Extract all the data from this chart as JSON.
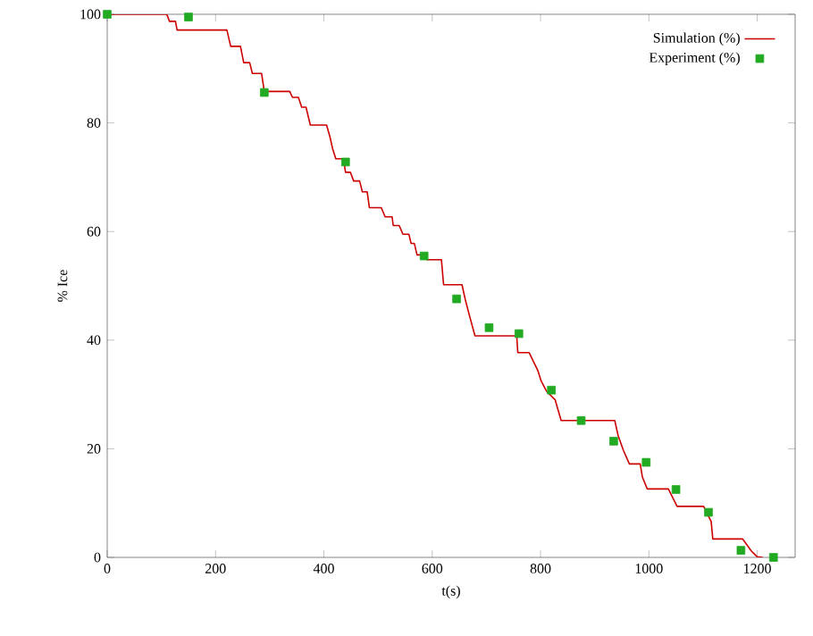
{
  "chart_data": {
    "type": "line",
    "xlabel": "t(s)",
    "ylabel": "% Ice",
    "xlim": [
      0,
      1270
    ],
    "ylim": [
      0,
      100
    ],
    "xticks": [
      0,
      200,
      400,
      600,
      800,
      1000,
      1200
    ],
    "yticks": [
      0,
      20,
      40,
      60,
      80,
      100
    ],
    "legend": "top right",
    "grid": false,
    "series": [
      {
        "name": "Simulation (%)",
        "color": "#cc0000",
        "marker": "none",
        "line_style": "solid",
        "x": [
          0,
          110,
          115,
          126,
          129,
          221,
          228,
          246,
          252,
          263,
          268,
          285,
          290,
          337,
          342,
          353,
          359,
          367,
          375,
          405,
          411,
          416,
          422,
          436,
          440,
          449,
          455,
          466,
          471,
          480,
          484,
          506,
          513,
          526,
          528,
          539,
          546,
          557,
          561,
          567,
          572,
          586,
          590,
          617,
          621,
          655,
          661,
          668,
          679,
          756,
          758,
          779,
          795,
          801,
          811,
          827,
          838,
          937,
          943,
          953,
          964,
          984,
          988,
          997,
          1036,
          1052,
          1101,
          1115,
          1118,
          1173,
          1189,
          1200,
          1210
        ],
        "values": [
          100,
          100,
          98.7,
          98.7,
          97.1,
          97.1,
          94.1,
          94.1,
          91.1,
          91.1,
          89.1,
          89.1,
          85.8,
          85.8,
          84.7,
          84.7,
          82.9,
          82.9,
          79.6,
          79.6,
          77.5,
          75.3,
          73.4,
          73.4,
          70.9,
          70.9,
          69.3,
          69.3,
          67.3,
          67.3,
          64.4,
          64.4,
          62.7,
          62.7,
          61.1,
          61.1,
          59.5,
          59.5,
          57.8,
          57.8,
          55.7,
          55.7,
          54.8,
          54.8,
          50.2,
          50.2,
          47.5,
          44.8,
          40.8,
          40.8,
          37.7,
          37.7,
          34.4,
          32.5,
          30.6,
          29.0,
          25.2,
          25.2,
          22.5,
          19.7,
          17.2,
          17.2,
          14.8,
          12.6,
          12.6,
          9.4,
          9.4,
          6.6,
          3.4,
          3.4,
          1.2,
          0.1,
          0
        ]
      },
      {
        "name": "Experiment (%)",
        "type": "scatter",
        "color": "#22aa22",
        "marker": "square",
        "x": [
          0,
          150,
          290,
          440,
          585,
          645,
          705,
          760,
          820,
          875,
          935,
          995,
          1050,
          1110,
          1170,
          1230
        ],
        "values": [
          100,
          99.5,
          85.6,
          72.8,
          55.5,
          47.6,
          42.3,
          41.2,
          30.8,
          25.2,
          21.4,
          17.5,
          12.5,
          8.3,
          1.3,
          0
        ]
      }
    ]
  }
}
